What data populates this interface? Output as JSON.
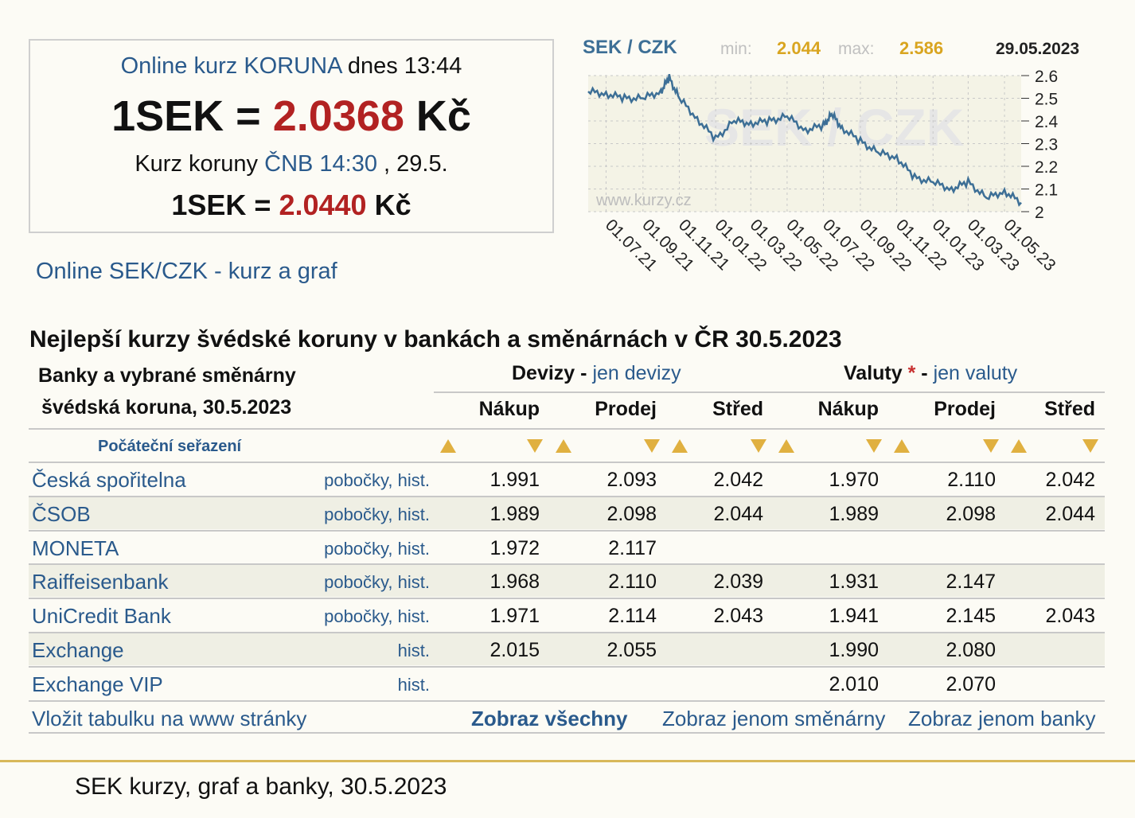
{
  "rate_box": {
    "line1_link": "Online kurz KORUNA",
    "line1_rest": " dnes 13:44",
    "online_left": "1SEK = ",
    "online_value": "2.0368",
    "online_unit": " Kč",
    "cnb_label": "Kurz koruny ",
    "cnb_link": "ČNB 14:30",
    "cnb_date": " , 29.5.",
    "cnb_left": "1SEK = ",
    "cnb_value": "2.0440",
    "cnb_unit": " Kč"
  },
  "online_link": "Online SEK/CZK - kurz a graf",
  "chart_data": {
    "type": "line",
    "title": "SEK / CZK",
    "min_label": "min:",
    "min_value": "2.044",
    "max_label": "max:",
    "max_value": "2.586",
    "date": "29.05.2023",
    "watermark": "SEK / CZK",
    "site": "www.kurzy.cz",
    "ylim": [
      2.0,
      2.6
    ],
    "y_ticks": [
      "2.6",
      "2.5",
      "2.4",
      "2.3",
      "2.2",
      "2.1",
      "2"
    ],
    "x_ticks": [
      "01.07.21",
      "01.09.21",
      "01.11.21",
      "01.01.22",
      "01.03.22",
      "01.05.22",
      "01.07.22",
      "01.09.22",
      "01.11.22",
      "01.01.23",
      "01.03.23",
      "01.05.23"
    ],
    "x": [
      "2021-06-01",
      "2021-07-01",
      "2021-08-01",
      "2021-09-01",
      "2021-10-01",
      "2021-10-15",
      "2021-11-01",
      "2021-12-01",
      "2022-01-01",
      "2022-02-01",
      "2022-03-01",
      "2022-04-01",
      "2022-05-01",
      "2022-06-01",
      "2022-07-01",
      "2022-07-15",
      "2022-08-01",
      "2022-09-01",
      "2022-10-01",
      "2022-11-01",
      "2022-12-01",
      "2023-01-01",
      "2023-02-01",
      "2023-03-01",
      "2023-04-01",
      "2023-05-01",
      "2023-05-29"
    ],
    "values": [
      2.53,
      2.52,
      2.5,
      2.5,
      2.53,
      2.59,
      2.5,
      2.41,
      2.32,
      2.4,
      2.39,
      2.4,
      2.42,
      2.36,
      2.38,
      2.43,
      2.37,
      2.31,
      2.26,
      2.24,
      2.15,
      2.13,
      2.1,
      2.13,
      2.06,
      2.09,
      2.04
    ]
  },
  "table": {
    "title": "Nejlepší kurzy švédské koruny v bankách a směnárnách v ČR 30.5.2023",
    "head_left_1": "Banky a vybrané směnárny",
    "head_left_2": "švédská koruna, 30.5.2023",
    "devizy_label": "Devizy",
    "devizy_dash": " - ",
    "devizy_link": "jen devizy",
    "valuty_label": "Valuty",
    "valuty_star": " *",
    "valuty_dash": " - ",
    "valuty_link": "jen valuty",
    "columns": [
      "Nákup",
      "Prodej",
      "Střed",
      "Nákup",
      "Prodej",
      "Střed"
    ],
    "sort_label": "Počáteční seřazení",
    "rows": [
      {
        "name": "Česká spořitelna",
        "branches": "pobočky",
        "hist": "hist.",
        "values": [
          "1.991",
          "2.093",
          "2.042",
          "1.970",
          "2.110",
          "2.042"
        ]
      },
      {
        "name": "ČSOB",
        "branches": "pobočky",
        "hist": "hist.",
        "values": [
          "1.989",
          "2.098",
          "2.044",
          "1.989",
          "2.098",
          "2.044"
        ]
      },
      {
        "name": "MONETA",
        "branches": "pobočky",
        "hist": "hist.",
        "values": [
          "1.972",
          "2.117",
          "",
          "",
          "",
          ""
        ]
      },
      {
        "name": "Raiffeisenbank",
        "branches": "pobočky",
        "hist": "hist.",
        "values": [
          "1.968",
          "2.110",
          "2.039",
          "1.931",
          "2.147",
          ""
        ]
      },
      {
        "name": "UniCredit Bank",
        "branches": "pobočky",
        "hist": "hist.",
        "values": [
          "1.971",
          "2.114",
          "2.043",
          "1.941",
          "2.145",
          "2.043"
        ]
      },
      {
        "name": "Exchange",
        "branches": "",
        "hist": "hist.",
        "values": [
          "2.015",
          "2.055",
          "",
          "1.990",
          "2.080",
          ""
        ]
      },
      {
        "name": "Exchange VIP",
        "branches": "",
        "hist": "hist.",
        "values": [
          "",
          "",
          "",
          "2.010",
          "2.070",
          ""
        ]
      }
    ],
    "footer": {
      "embed": "Vložit tabulku na www stránky",
      "show_all": "Zobraz všechny",
      "show_exchanges": "Zobraz jenom směnárny",
      "show_banks": "Zobraz jenom banky"
    }
  },
  "bottom_text": "SEK kurzy, graf a banky, 30.5.2023",
  "colors": {
    "accent_red": "#b22222",
    "link_blue": "#2a5a8c",
    "sort_gold": "#e0b040",
    "chart_line": "#3d6f96"
  }
}
